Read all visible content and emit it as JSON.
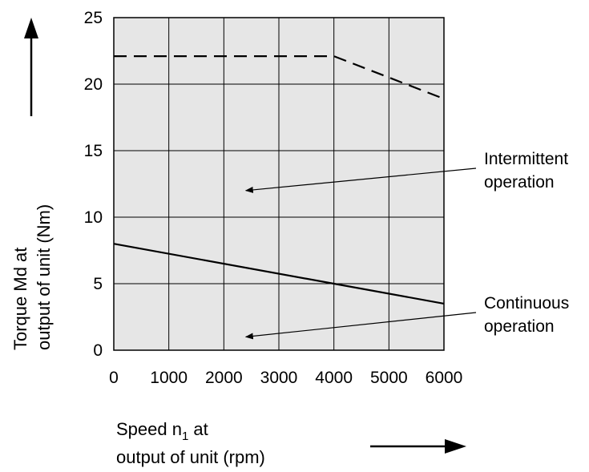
{
  "chart_data": {
    "type": "line",
    "x_ticks": [
      0,
      1000,
      2000,
      3000,
      4000,
      5000,
      6000
    ],
    "y_ticks": [
      0,
      5,
      10,
      15,
      20,
      25
    ],
    "x_tick_labels": [
      "0",
      "1000",
      "2000",
      "3000",
      "4000",
      "5000",
      "6000"
    ],
    "y_tick_labels": [
      "0",
      "5",
      "10",
      "15",
      "20",
      "25"
    ],
    "xlim": [
      0,
      6000
    ],
    "ylim": [
      0,
      25
    ],
    "grid": true,
    "series": [
      {
        "name": "Intermittent operation",
        "style": "dashed",
        "x": [
          0,
          4000,
          6000
        ],
        "y": [
          22.1,
          22.1,
          18.9
        ]
      },
      {
        "name": "Continuous operation",
        "style": "solid",
        "x": [
          0,
          4000,
          6000
        ],
        "y": [
          8.0,
          5.0,
          3.5
        ]
      }
    ],
    "ylabel_line1": "Torque Md at",
    "ylabel_line2": "output of unit (Nm)",
    "xlabel_line1_pre": "Speed n",
    "xlabel_subscript": "1",
    "xlabel_line1_post": " at",
    "xlabel_line2": "output of unit (rpm)",
    "annotations": [
      {
        "line1": "Intermittent",
        "line2": "operation",
        "point_x": 2400,
        "point_y": 12
      },
      {
        "line1": "Continuous",
        "line2": "operation",
        "point_x": 2400,
        "point_y": 1
      }
    ],
    "colors": {
      "plot_bg": "#e6e6e6",
      "grid": "#000000",
      "line": "#000000"
    }
  }
}
